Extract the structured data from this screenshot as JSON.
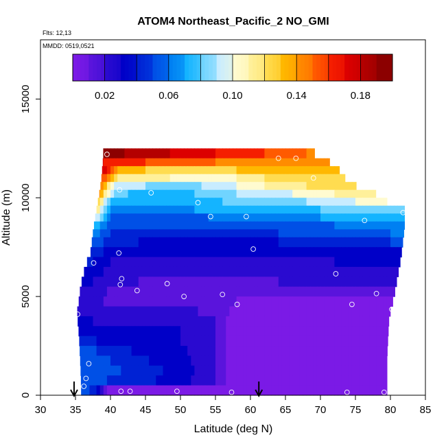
{
  "chart_data": {
    "type": "heatmap",
    "title": "ATOM4 Northeast_Pacific_2 NO_GMI",
    "flights_label": "Flts: 12,13",
    "dates_label": "MMDD: 0519,0521",
    "xlabel": "Latitude (deg N)",
    "ylabel": "Altitude (m)",
    "xlim": [
      30,
      85
    ],
    "ylim": [
      0,
      18000
    ],
    "xticks": [
      "30",
      "35",
      "40",
      "45",
      "50",
      "55",
      "60",
      "65",
      "70",
      "75",
      "80",
      "85"
    ],
    "yticks": [
      "0",
      "5000",
      "10000",
      "15000"
    ],
    "colorbar": {
      "range": [
        0,
        0.2
      ],
      "tick_labels": [
        "0.02",
        "0.06",
        "0.10",
        "0.14",
        "0.18"
      ],
      "tick_values": [
        0.02,
        0.06,
        0.1,
        0.14,
        0.18
      ],
      "colors": [
        "#7b1ae6",
        "#5a14dc",
        "#2a0ad0",
        "#0000c8",
        "#0022d4",
        "#0050e6",
        "#0080f2",
        "#14b4ff",
        "#70d4ff",
        "#c8ecff",
        "#fffbd0",
        "#fff09a",
        "#ffdc50",
        "#ffb800",
        "#ff8c00",
        "#ff5a00",
        "#f51e00",
        "#dc0000",
        "#b40000",
        "#8c0000"
      ]
    },
    "arrows_lat": [
      34.8,
      61.2
    ],
    "outer_edge_lat": [
      [
        0,
        35.8
      ],
      [
        500,
        35.8
      ],
      [
        1500,
        35.7
      ],
      [
        3000,
        35.5
      ],
      [
        4200,
        35.2
      ],
      [
        4400,
        35.4
      ],
      [
        5000,
        35.5
      ],
      [
        6000,
        36
      ],
      [
        6700,
        36.6
      ],
      [
        7300,
        37.2
      ],
      [
        8000,
        37.4
      ],
      [
        8500,
        37.6
      ],
      [
        9200,
        37.9
      ],
      [
        9800,
        38.2
      ],
      [
        10400,
        38.5
      ],
      [
        11000,
        38.7
      ],
      [
        11800,
        38.9
      ],
      [
        12500,
        39.0
      ]
    ],
    "edge_lat": [
      [
        0,
        79.5
      ],
      [
        2000,
        79.5
      ],
      [
        4000,
        79.8
      ],
      [
        5000,
        80.5
      ],
      [
        7000,
        81.5
      ],
      [
        8500,
        82
      ],
      [
        9500,
        82
      ],
      [
        9600,
        79.5
      ],
      [
        10000,
        79.5
      ],
      [
        10500,
        75.5
      ],
      [
        11000,
        73.5
      ],
      [
        11500,
        72.5
      ],
      [
        12000,
        70.5
      ],
      [
        12500,
        67.8
      ]
    ],
    "cells": [
      {
        "alt_top": 12500,
        "alt_bottom": 12000,
        "profile": [
          [
            39,
            0.195
          ],
          [
            45,
            0.185
          ],
          [
            55,
            0.17
          ],
          [
            62,
            0.16
          ],
          [
            68,
            0.15
          ]
        ]
      },
      {
        "alt_top": 12000,
        "alt_bottom": 11600,
        "profile": [
          [
            39,
            0.17
          ],
          [
            45,
            0.16
          ],
          [
            55,
            0.15
          ],
          [
            62,
            0.145
          ],
          [
            70,
            0.14
          ]
        ]
      },
      {
        "alt_top": 11600,
        "alt_bottom": 11200,
        "profile": [
          [
            39,
            0.175
          ],
          [
            41,
            0.14
          ],
          [
            45,
            0.13
          ],
          [
            52,
            0.125
          ],
          [
            58,
            0.13
          ],
          [
            64,
            0.135
          ],
          [
            72,
            0.13
          ]
        ]
      },
      {
        "alt_top": 11200,
        "alt_bottom": 10800,
        "profile": [
          [
            39,
            0.16
          ],
          [
            41,
            0.12
          ],
          [
            45,
            0.115
          ],
          [
            52,
            0.105
          ],
          [
            58,
            0.11
          ],
          [
            64,
            0.125
          ],
          [
            73,
            0.12
          ]
        ]
      },
      {
        "alt_top": 10800,
        "alt_bottom": 10400,
        "profile": [
          [
            38.5,
            0.15
          ],
          [
            40.5,
            0.1
          ],
          [
            45,
            0.09
          ],
          [
            50,
            0.085
          ],
          [
            56,
            0.095
          ],
          [
            62,
            0.11
          ],
          [
            68,
            0.12
          ],
          [
            75,
            0.12
          ]
        ]
      },
      {
        "alt_top": 10400,
        "alt_bottom": 10000,
        "profile": [
          [
            38.5,
            0.14
          ],
          [
            40.5,
            0.085
          ],
          [
            45,
            0.075
          ],
          [
            52,
            0.08
          ],
          [
            58,
            0.09
          ],
          [
            66,
            0.1
          ],
          [
            72,
            0.11
          ],
          [
            78,
            0.12
          ]
        ]
      },
      {
        "alt_top": 10000,
        "alt_bottom": 9600,
        "profile": [
          [
            38.2,
            0.13
          ],
          [
            40,
            0.075
          ],
          [
            45,
            0.07
          ],
          [
            52,
            0.075
          ],
          [
            60,
            0.085
          ],
          [
            68,
            0.09
          ],
          [
            75,
            0.1
          ],
          [
            79,
            0.11
          ]
        ]
      },
      {
        "alt_top": 9600,
        "alt_bottom": 9200,
        "profile": [
          [
            38,
            0.12
          ],
          [
            40,
            0.065
          ],
          [
            46,
            0.062
          ],
          [
            52,
            0.07
          ],
          [
            60,
            0.075
          ],
          [
            70,
            0.08
          ],
          [
            78,
            0.085
          ],
          [
            82,
            0.09
          ]
        ]
      },
      {
        "alt_top": 9200,
        "alt_bottom": 8800,
        "profile": [
          [
            37.8,
            0.1
          ],
          [
            40,
            0.06
          ],
          [
            46,
            0.058
          ],
          [
            54,
            0.06
          ],
          [
            62,
            0.065
          ],
          [
            70,
            0.07
          ],
          [
            78,
            0.08
          ],
          [
            82,
            0.075
          ]
        ]
      },
      {
        "alt_top": 8800,
        "alt_bottom": 8400,
        "profile": [
          [
            37.6,
            0.08
          ],
          [
            40,
            0.055
          ],
          [
            48,
            0.05
          ],
          [
            56,
            0.052
          ],
          [
            64,
            0.055
          ],
          [
            72,
            0.06
          ],
          [
            80,
            0.07
          ],
          [
            82,
            0.065
          ]
        ]
      },
      {
        "alt_top": 8400,
        "alt_bottom": 8000,
        "profile": [
          [
            37.4,
            0.07
          ],
          [
            40,
            0.05
          ],
          [
            48,
            0.045
          ],
          [
            56,
            0.045
          ],
          [
            64,
            0.05
          ],
          [
            72,
            0.055
          ],
          [
            80,
            0.06
          ],
          [
            82,
            0.06
          ]
        ]
      },
      {
        "alt_top": 8000,
        "alt_bottom": 7500,
        "profile": [
          [
            37.3,
            0.06
          ],
          [
            40,
            0.042
          ],
          [
            48,
            0.038
          ],
          [
            56,
            0.036
          ],
          [
            64,
            0.04
          ],
          [
            72,
            0.045
          ],
          [
            80,
            0.05
          ],
          [
            81.5,
            0.05
          ]
        ]
      },
      {
        "alt_top": 7500,
        "alt_bottom": 7000,
        "profile": [
          [
            37.2,
            0.05
          ],
          [
            40,
            0.035
          ],
          [
            48,
            0.03
          ],
          [
            56,
            0.03
          ],
          [
            64,
            0.033
          ],
          [
            72,
            0.036
          ],
          [
            80,
            0.04
          ],
          [
            81.5,
            0.04
          ]
        ]
      },
      {
        "alt_top": 7000,
        "alt_bottom": 6500,
        "profile": [
          [
            36.6,
            0.045
          ],
          [
            40,
            0.03
          ],
          [
            48,
            0.026
          ],
          [
            56,
            0.025
          ],
          [
            64,
            0.028
          ],
          [
            72,
            0.03
          ],
          [
            80,
            0.033
          ],
          [
            81,
            0.033
          ]
        ]
      },
      {
        "alt_top": 6500,
        "alt_bottom": 6000,
        "profile": [
          [
            36.2,
            0.04
          ],
          [
            40,
            0.026
          ],
          [
            48,
            0.022
          ],
          [
            56,
            0.022
          ],
          [
            64,
            0.024
          ],
          [
            72,
            0.026
          ],
          [
            80,
            0.028
          ],
          [
            81,
            0.028
          ]
        ]
      },
      {
        "alt_top": 6000,
        "alt_bottom": 5500,
        "profile": [
          [
            35.8,
            0.035
          ],
          [
            40,
            0.022
          ],
          [
            48,
            0.018
          ],
          [
            56,
            0.018
          ],
          [
            64,
            0.02
          ],
          [
            72,
            0.022
          ],
          [
            80,
            0.024
          ]
        ]
      },
      {
        "alt_top": 5500,
        "alt_bottom": 5000,
        "profile": [
          [
            35.6,
            0.03
          ],
          [
            40,
            0.018
          ],
          [
            48,
            0.015
          ],
          [
            56,
            0.014
          ],
          [
            62,
            0.012
          ],
          [
            70,
            0.014
          ],
          [
            80,
            0.016
          ]
        ]
      },
      {
        "alt_top": 5000,
        "alt_bottom": 4500,
        "profile": [
          [
            35.4,
            0.028
          ],
          [
            40,
            0.018
          ],
          [
            48,
            0.014
          ],
          [
            56,
            0.012
          ],
          [
            60,
            0.008
          ],
          [
            70,
            0.008
          ],
          [
            80,
            0.01
          ]
        ]
      },
      {
        "alt_top": 4500,
        "alt_bottom": 4000,
        "profile": [
          [
            35.2,
            0.03
          ],
          [
            38,
            0.024
          ],
          [
            44,
            0.02
          ],
          [
            50,
            0.022
          ],
          [
            55,
            0.018
          ],
          [
            58,
            0.006
          ],
          [
            68,
            0.005
          ],
          [
            80,
            0.006
          ]
        ]
      },
      {
        "alt_top": 4000,
        "alt_bottom": 3500,
        "profile": [
          [
            35.5,
            0.035
          ],
          [
            38,
            0.028
          ],
          [
            44,
            0.026
          ],
          [
            50,
            0.028
          ],
          [
            55,
            0.02
          ],
          [
            57,
            0.006
          ],
          [
            68,
            0.005
          ],
          [
            79.8,
            0.005
          ]
        ]
      },
      {
        "alt_top": 3500,
        "alt_bottom": 3000,
        "profile": [
          [
            35.5,
            0.04
          ],
          [
            38,
            0.033
          ],
          [
            44,
            0.03
          ],
          [
            50,
            0.03
          ],
          [
            55,
            0.022
          ],
          [
            57,
            0.006
          ],
          [
            68,
            0.004
          ],
          [
            79.8,
            0.005
          ]
        ]
      },
      {
        "alt_top": 3000,
        "alt_bottom": 2500,
        "profile": [
          [
            35.5,
            0.05
          ],
          [
            38,
            0.04
          ],
          [
            44,
            0.034
          ],
          [
            50,
            0.03
          ],
          [
            55,
            0.022
          ],
          [
            57,
            0.006
          ],
          [
            68,
            0.004
          ],
          [
            79.6,
            0.005
          ]
        ]
      },
      {
        "alt_top": 2500,
        "alt_bottom": 2000,
        "profile": [
          [
            35.6,
            0.055
          ],
          [
            38,
            0.05
          ],
          [
            44,
            0.038
          ],
          [
            50,
            0.032
          ],
          [
            55,
            0.022
          ],
          [
            57,
            0.006
          ],
          [
            68,
            0.004
          ],
          [
            79.5,
            0.004
          ]
        ]
      },
      {
        "alt_top": 2000,
        "alt_bottom": 1500,
        "profile": [
          [
            35.6,
            0.058
          ],
          [
            38,
            0.054
          ],
          [
            44,
            0.042
          ],
          [
            50,
            0.034
          ],
          [
            55,
            0.022
          ],
          [
            57,
            0.006
          ],
          [
            68,
            0.004
          ],
          [
            79.5,
            0.004
          ]
        ]
      },
      {
        "alt_top": 1500,
        "alt_bottom": 1000,
        "profile": [
          [
            35.7,
            0.06
          ],
          [
            38,
            0.055
          ],
          [
            44,
            0.046
          ],
          [
            50,
            0.036
          ],
          [
            55,
            0.022
          ],
          [
            57,
            0.006
          ],
          [
            68,
            0.004
          ],
          [
            79.5,
            0.004
          ]
        ]
      },
      {
        "alt_top": 1000,
        "alt_bottom": 500,
        "profile": [
          [
            35.8,
            0.06
          ],
          [
            38,
            0.052
          ],
          [
            44,
            0.044
          ],
          [
            50,
            0.034
          ],
          [
            55,
            0.02
          ],
          [
            57,
            0.006
          ],
          [
            68,
            0.004
          ],
          [
            79.5,
            0.004
          ]
        ]
      },
      {
        "alt_top": 500,
        "alt_bottom": 0,
        "profile": [
          [
            35.8,
            0.055
          ],
          [
            38,
            0.045
          ],
          [
            39.5,
            0.008
          ],
          [
            44,
            0.004
          ],
          [
            60,
            0.004
          ],
          [
            79.5,
            0.004
          ]
        ]
      }
    ],
    "points": [
      [
        39.5,
        12200
      ],
      [
        64,
        12000
      ],
      [
        66.5,
        12000
      ],
      [
        69,
        11000
      ],
      [
        41.3,
        10400
      ],
      [
        45.8,
        10250
      ],
      [
        52.5,
        9750
      ],
      [
        54.3,
        9050
      ],
      [
        59.4,
        9050
      ],
      [
        76.3,
        8850
      ],
      [
        81.8,
        9250
      ],
      [
        41.2,
        7200
      ],
      [
        37.6,
        6700
      ],
      [
        60.4,
        7400
      ],
      [
        72.2,
        6150
      ],
      [
        41.6,
        5900
      ],
      [
        41.4,
        5600
      ],
      [
        48.1,
        5650
      ],
      [
        43.8,
        5300
      ],
      [
        50.5,
        5000
      ],
      [
        56,
        5100
      ],
      [
        58.1,
        4600
      ],
      [
        74.5,
        4600
      ],
      [
        78,
        5150
      ],
      [
        80.2,
        4350
      ],
      [
        35.3,
        4100
      ],
      [
        36.9,
        1600
      ],
      [
        36.5,
        850
      ],
      [
        36.2,
        450
      ],
      [
        41.5,
        200
      ],
      [
        42.8,
        200
      ],
      [
        49.5,
        200
      ],
      [
        57.3,
        150
      ],
      [
        73.8,
        150
      ],
      [
        79.1,
        150
      ]
    ]
  }
}
